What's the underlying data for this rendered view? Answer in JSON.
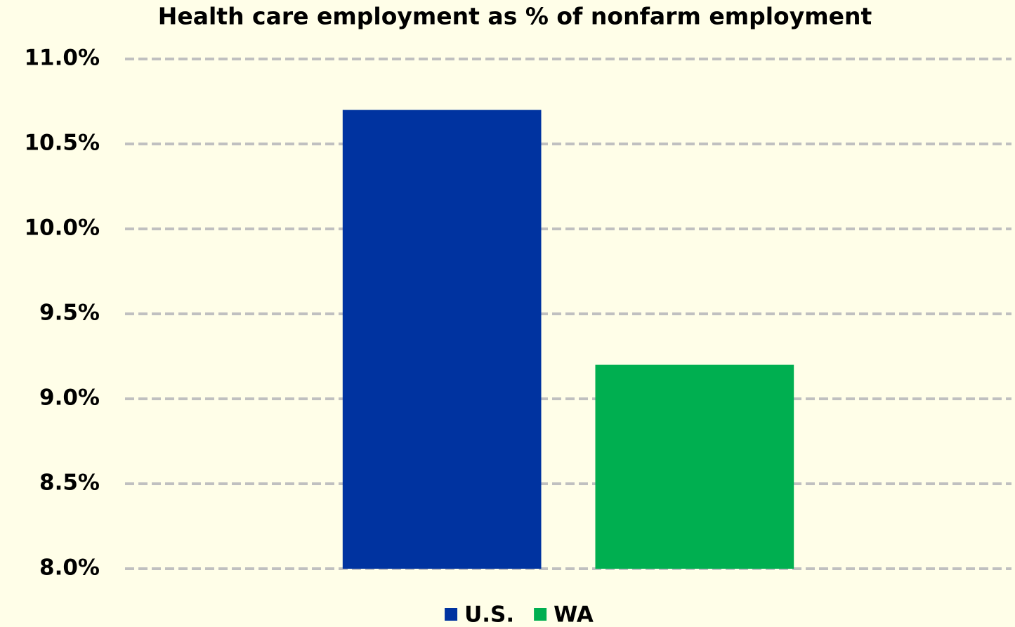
{
  "chart_data": {
    "type": "bar",
    "title": "Health care employment as % of nonfarm employment",
    "categories": [
      null
    ],
    "series": [
      {
        "name": "U.S.",
        "color": "#0033a0",
        "values": [
          10.7
        ]
      },
      {
        "name": "WA",
        "color": "#00af50",
        "values": [
          9.2
        ]
      }
    ],
    "ylim": [
      8,
      11
    ],
    "yticks": [
      {
        "value": 8,
        "label": "8.0%"
      },
      {
        "value": 8.5,
        "label": "8.5%"
      },
      {
        "value": 9,
        "label": "9.0%"
      },
      {
        "value": 9.5,
        "label": "9.5%"
      },
      {
        "value": 10,
        "label": "10.0%"
      },
      {
        "value": 10.5,
        "label": "10.5%"
      },
      {
        "value": 11,
        "label": "11.0%"
      }
    ],
    "grid": true,
    "legend": "bottom"
  }
}
